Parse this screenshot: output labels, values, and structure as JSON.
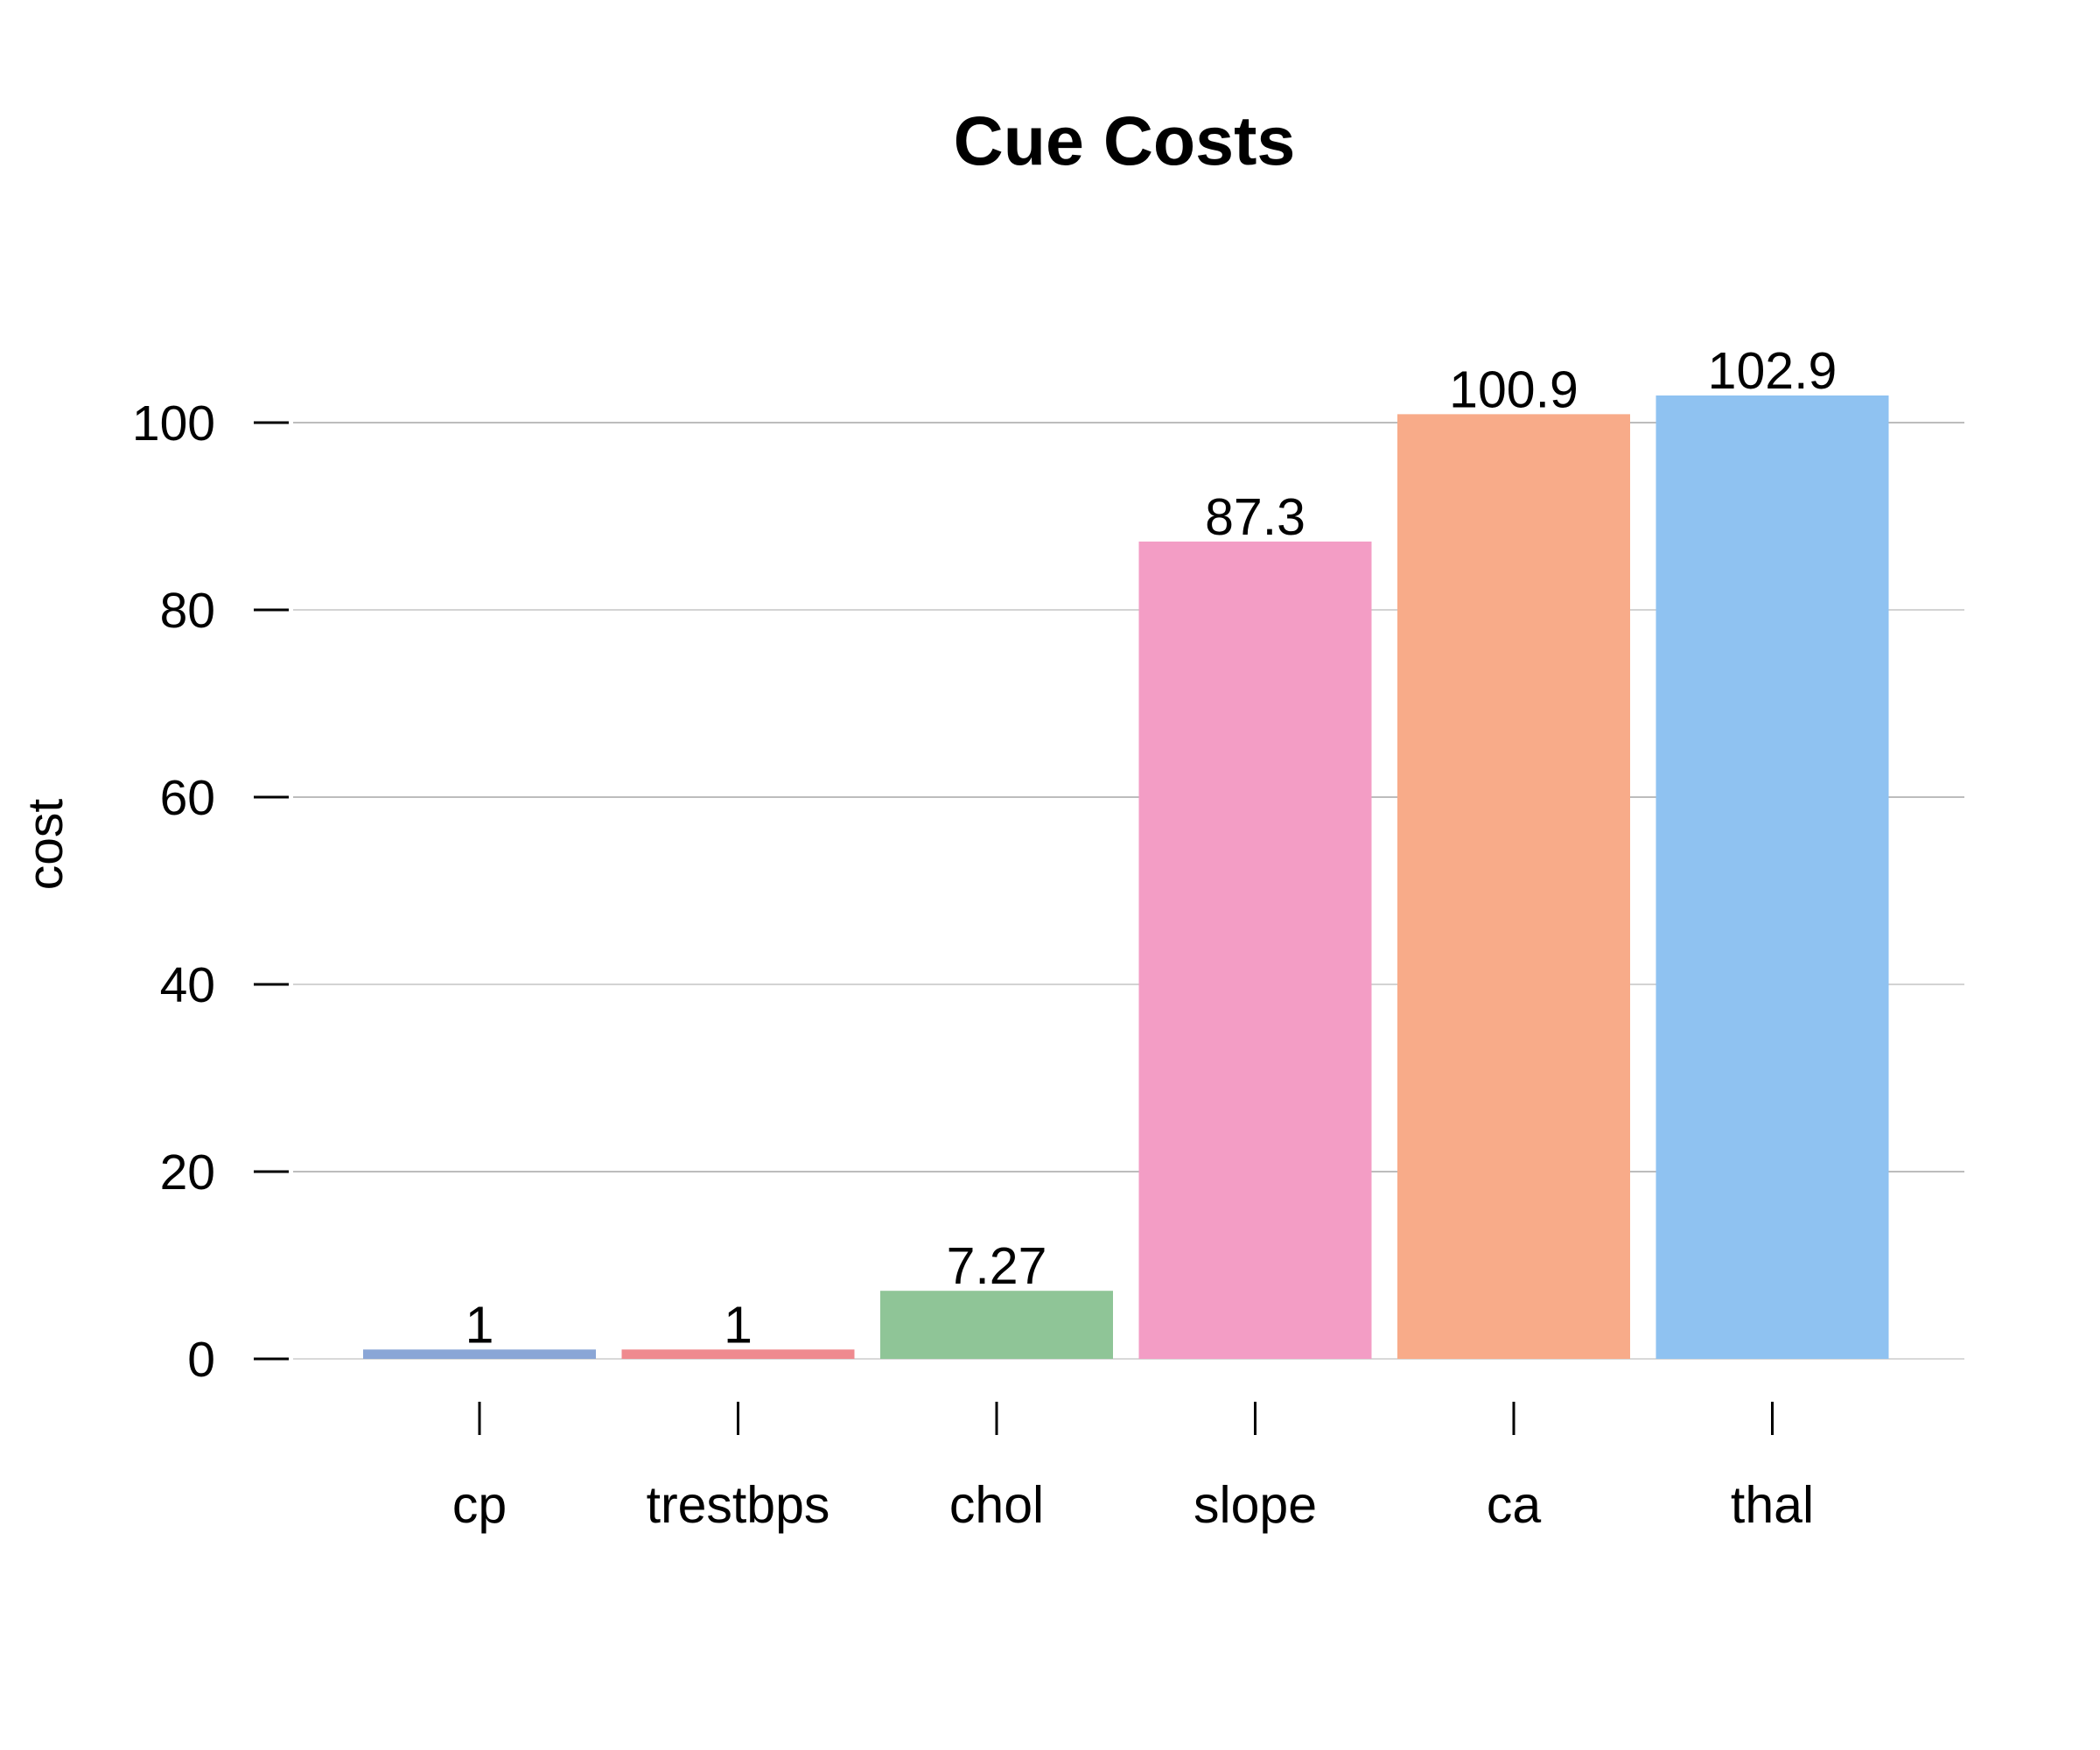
{
  "chart_data": {
    "type": "bar",
    "title": "Cue Costs",
    "xlabel": "",
    "ylabel": "cost",
    "categories": [
      "cp",
      "trestbps",
      "chol",
      "slope",
      "ca",
      "thal"
    ],
    "values": [
      1,
      1,
      7.27,
      87.3,
      100.9,
      102.9
    ],
    "value_labels": [
      "1",
      "1",
      "7.27",
      "87.3",
      "100.9",
      "102.9"
    ],
    "colors": [
      "#8aa6d6",
      "#ef8a8f",
      "#8fc597",
      "#f39dc5",
      "#f8ab89",
      "#8fc2f1"
    ],
    "yticks": [
      0,
      20,
      40,
      60,
      80,
      100
    ],
    "ylim": [
      0,
      100
    ],
    "grid": true,
    "legend": "none"
  }
}
